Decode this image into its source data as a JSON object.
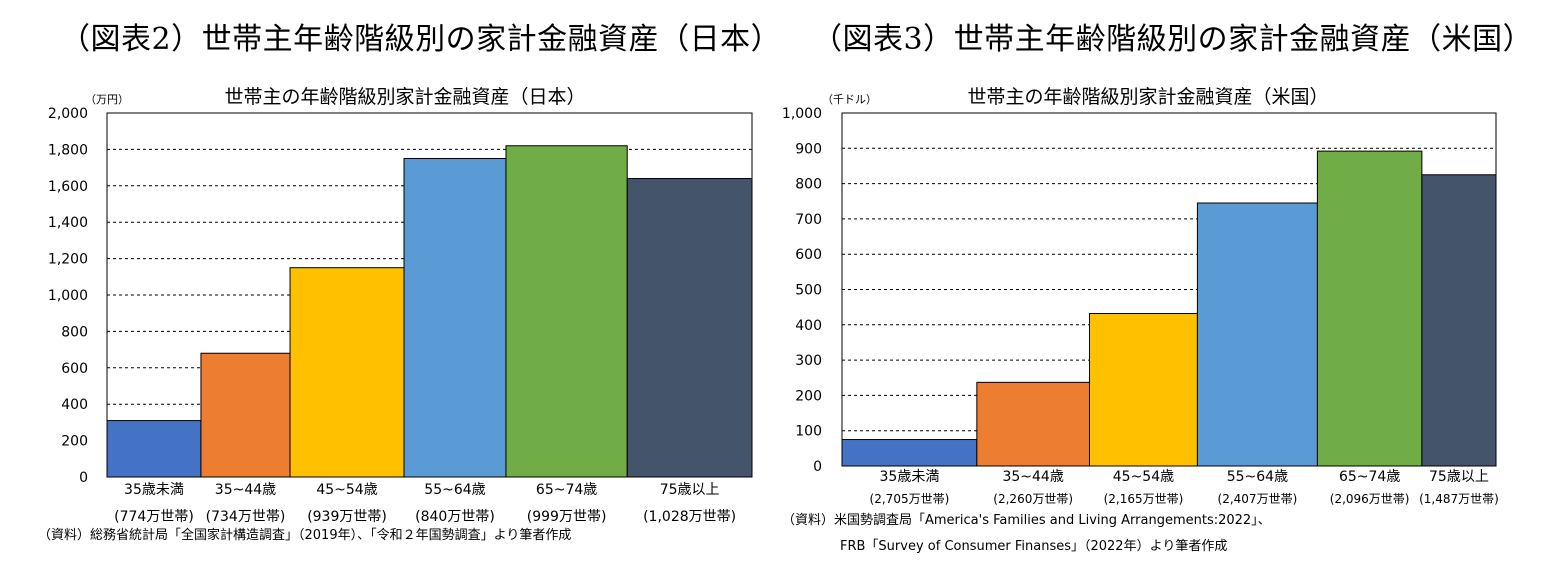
{
  "figures": {
    "left_title": "（図表2）世帯主年齢階級別の家計金融資産（日本）",
    "right_title": "（図表3）世帯主年齢階級別の家計金融資産（米国）"
  },
  "chart_data": [
    {
      "type": "bar",
      "title": "世帯主の年齢階級別家計金融資産（日本）",
      "unit": "（万円）",
      "ylim": [
        0,
        2000
      ],
      "yticks": [
        0,
        200,
        400,
        600,
        800,
        1000,
        1200,
        1400,
        1600,
        1800,
        2000
      ],
      "ytick_labels": [
        "0",
        "200",
        "400",
        "600",
        "800",
        "1,000",
        "1,200",
        "1,400",
        "1,600",
        "1,800",
        "2,000"
      ],
      "grid": true,
      "categories": [
        "35歳未満",
        "35~44歳",
        "45~54歳",
        "55~64歳",
        "65~74歳",
        "75歳以上"
      ],
      "households": [
        "(774万世帯)",
        "(734万世帯)",
        "(939万世帯)",
        "(840万世帯)",
        "(999万世帯)",
        "(1,028万世帯)"
      ],
      "household_shares": [
        774,
        734,
        939,
        840,
        999,
        1028
      ],
      "values": [
        310,
        680,
        1150,
        1750,
        1820,
        1640
      ],
      "colors": [
        "#4472C4",
        "#ED7D31",
        "#FFC000",
        "#5B9BD5",
        "#70AD47",
        "#44546A"
      ],
      "source": "（資料）総務省統計局「全国家計構造調査」（2019年）、「令和２年国勢調査」より筆者作成"
    },
    {
      "type": "bar",
      "title": "世帯主の年齢階級別家計金融資産（米国）",
      "unit": "（千ドル）",
      "ylim": [
        0,
        1000
      ],
      "yticks": [
        0,
        100,
        200,
        300,
        400,
        500,
        600,
        700,
        800,
        900,
        1000
      ],
      "ytick_labels": [
        "0",
        "100",
        "200",
        "300",
        "400",
        "500",
        "600",
        "700",
        "800",
        "900",
        "1,000"
      ],
      "grid": true,
      "categories": [
        "35歳未満",
        "35~44歳",
        "45~54歳",
        "55~64歳",
        "65~74歳",
        "75歳以上"
      ],
      "households": [
        "(2,705万世帯)",
        "(2,260万世帯)",
        "(2,165万世帯)",
        "(2,407万世帯)",
        "(2,096万世帯)",
        "(1,487万世帯)"
      ],
      "household_shares": [
        2705,
        2260,
        2165,
        2407,
        2096,
        1487
      ],
      "values": [
        75,
        237,
        432,
        745,
        892,
        825
      ],
      "colors": [
        "#4472C4",
        "#ED7D31",
        "#FFC000",
        "#5B9BD5",
        "#70AD47",
        "#44546A"
      ],
      "source_line1": "（資料）米国勢調査局「America's Families and Living Arrangements:2022」、",
      "source_line2": "FRB「Survey of Consumer Finanses」（2022年）より筆者作成"
    }
  ]
}
